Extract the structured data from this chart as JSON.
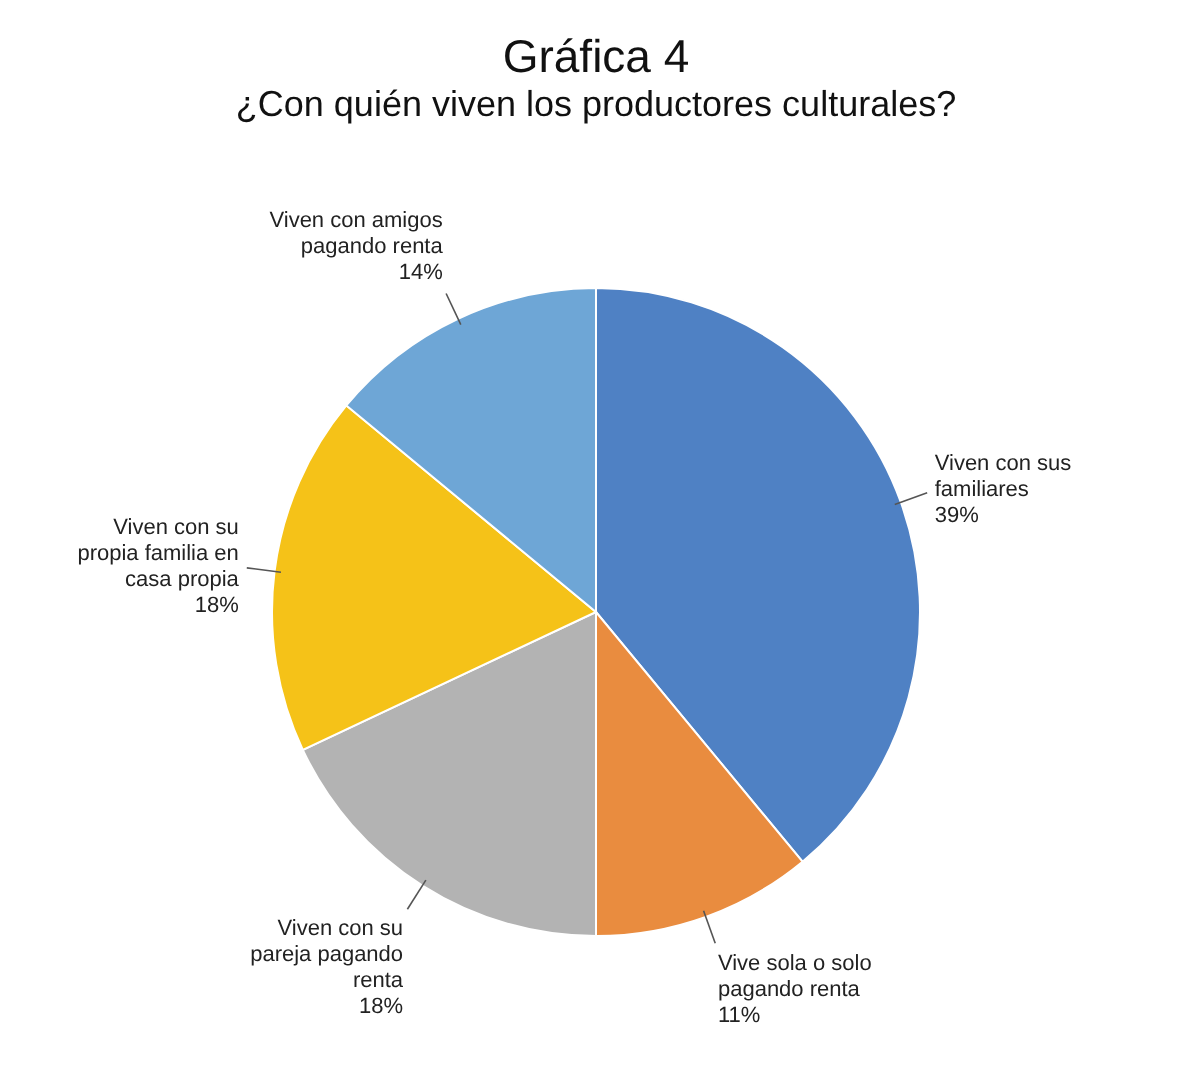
{
  "chart_data": {
    "type": "pie",
    "title": "Gráfica 4",
    "subtitle": "¿Con quién viven los productores culturales?",
    "categories": [
      "Viven con sus familiares",
      "Vive sola o solo pagando renta",
      "Viven con su pareja pagando renta",
      "Viven con su propia familia en casa propia",
      "Viven con amigos pagando renta"
    ],
    "values": [
      39,
      11,
      18,
      18,
      14
    ],
    "value_labels": [
      "39%",
      "11%",
      "18%",
      "18%",
      "14%"
    ],
    "colors": [
      "#4f81c4",
      "#e98c3f",
      "#b3b3b3",
      "#f5c218",
      "#6ea6d6"
    ],
    "legend": false
  }
}
